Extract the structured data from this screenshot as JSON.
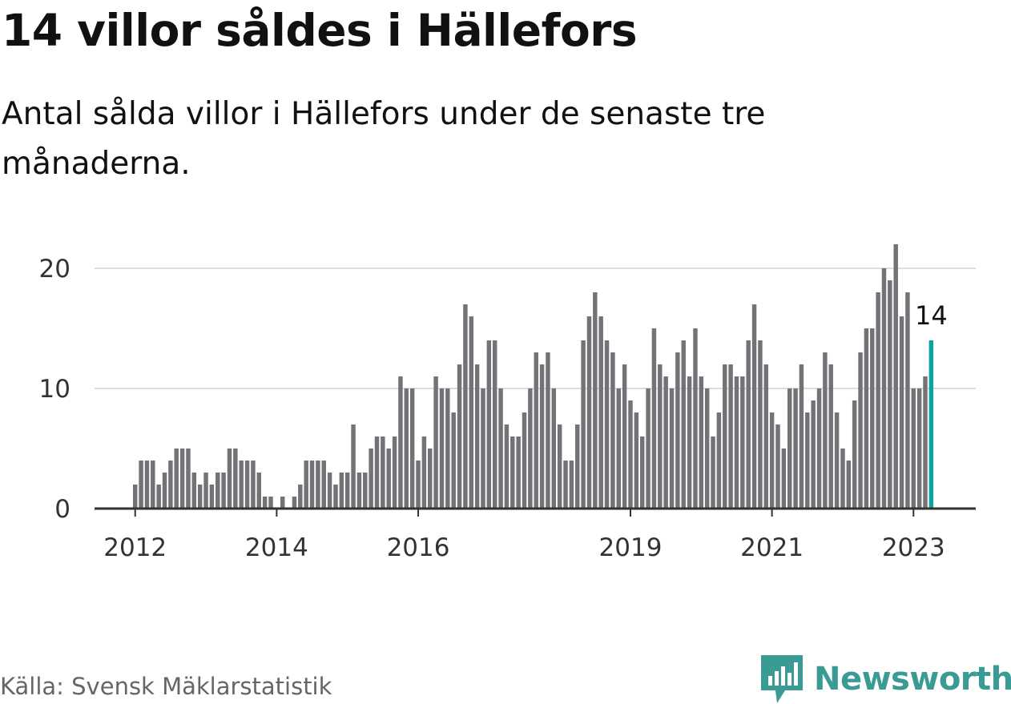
{
  "title": "14 villor såldes i Hällefors",
  "subtitle": "Antal sålda villor i Hällefors under de senaste tre månaderna.",
  "source": "Källa: Svensk Mäklarstatistik",
  "brand": {
    "name": "Newsworthy",
    "icon": "newsworthy-logo-icon"
  },
  "colors": {
    "bar": "#737277",
    "highlight": "#0aa59c",
    "grid": "#dddddd",
    "axis": "#333333",
    "brand": "#3a9a94"
  },
  "chart_data": {
    "type": "bar",
    "title": "14 villor såldes i Hällefors",
    "subtitle": "Antal sålda villor i Hällefors under de senaste tre månaderna.",
    "xlabel": "",
    "ylabel": "",
    "ylim": [
      0,
      24
    ],
    "yticks": [
      0,
      10,
      20
    ],
    "grid": true,
    "x_tick_labels": [
      "2012",
      "2014",
      "2016",
      "2019",
      "2021",
      "2023"
    ],
    "highlight_label": "14",
    "series": [
      {
        "values": [
          2,
          4,
          4,
          4,
          2,
          3,
          4,
          5,
          5,
          5,
          3,
          2,
          3,
          2,
          3,
          3,
          5,
          5,
          4,
          4,
          4,
          3,
          1,
          1,
          0,
          1,
          0,
          1,
          2,
          4,
          4,
          4,
          4,
          3,
          2,
          3,
          3,
          7,
          3,
          3,
          5,
          6,
          6,
          5,
          6,
          11,
          10,
          10,
          4,
          6,
          5,
          11,
          10,
          10,
          8,
          12,
          17,
          16,
          12,
          10,
          14,
          14,
          10,
          7,
          6,
          6,
          8,
          10,
          13,
          12,
          13,
          10,
          7,
          4,
          4,
          7,
          14,
          16,
          18,
          16,
          14,
          13,
          10,
          12,
          9,
          8,
          6,
          10,
          15,
          12,
          11,
          10,
          13,
          14,
          11,
          15,
          11,
          10,
          6,
          8,
          12,
          12,
          11,
          11,
          14,
          17,
          14,
          12,
          8,
          7,
          5,
          10,
          10,
          12,
          8,
          9,
          10,
          13,
          12,
          8,
          5,
          4,
          9,
          13,
          15,
          15,
          18,
          20,
          19,
          22,
          16,
          18,
          10,
          10,
          11,
          14
        ]
      }
    ]
  }
}
